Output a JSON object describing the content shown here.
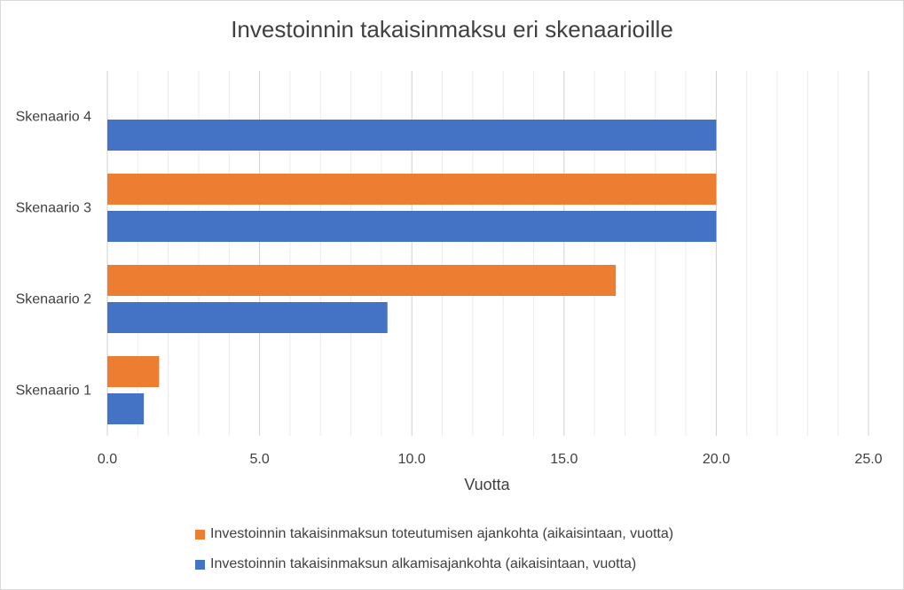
{
  "chart_data": {
    "type": "bar",
    "orientation": "horizontal",
    "title": "Investoinnin takaisinmaksu eri skenaarioille",
    "xlabel": "Vuotta",
    "ylabel": "",
    "xlim": [
      0,
      25
    ],
    "x_ticks": [
      "0.0",
      "5.0",
      "10.0",
      "15.0",
      "20.0",
      "25.0"
    ],
    "x_minor_step": 1,
    "grid": true,
    "legend_position": "bottom",
    "categories": [
      "Skenaario 1",
      "Skenaario 2",
      "Skenaario 3",
      "Skenaario 4"
    ],
    "series": [
      {
        "name": "Investoinnin takaisinmaksun toteutumisen ajankohta (aikaisintaan, vuotta)",
        "color": "#ED7D31",
        "values": [
          1.7,
          16.7,
          20.0,
          null
        ]
      },
      {
        "name": "Investoinnin takaisinmaksun alkamisajankohta (aikaisintaan, vuotta)",
        "color": "#4472C4",
        "values": [
          1.2,
          9.2,
          20.0,
          20.0
        ]
      }
    ]
  }
}
